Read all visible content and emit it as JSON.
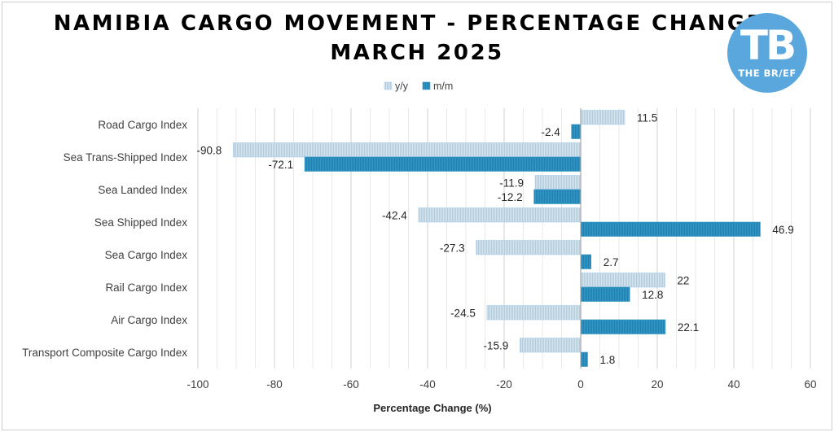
{
  "title_line1": "NAMIBIA CARGO MOVEMENT - PERCENTAGE CHANGES",
  "title_line2": "MARCH 2025",
  "logo": {
    "initials": "TB",
    "name": "THE BR/EF",
    "color": "#5aa7dd"
  },
  "chart_data": {
    "type": "bar",
    "orientation": "horizontal",
    "title": "NAMIBIA CARGO MOVEMENT - PERCENTAGE CHANGES MARCH 2025",
    "xlabel": "Percentage Change (%)",
    "ylabel": "",
    "xlim": [
      -100,
      60
    ],
    "xticks": [
      -100,
      -80,
      -60,
      -40,
      -20,
      0,
      20,
      40,
      60
    ],
    "grid": "vertical",
    "legend_position": "top-center",
    "categories": [
      "Road Cargo Index",
      "Sea Trans-Shipped Index",
      "Sea Landed Index",
      "Sea Shipped Index",
      "Sea Cargo Index",
      "Rail Cargo Index",
      "Air Cargo Index",
      "Transport Composite Cargo Index"
    ],
    "series": [
      {
        "name": "y/y",
        "color": "#a9cdeb",
        "values": [
          11.5,
          -90.8,
          -11.9,
          -42.4,
          -27.3,
          22,
          -24.5,
          -15.9
        ]
      },
      {
        "name": "m/m",
        "color": "#2e98c9",
        "values": [
          -2.4,
          -72.1,
          -12.2,
          46.9,
          2.7,
          12.8,
          22.1,
          1.8
        ]
      }
    ]
  }
}
